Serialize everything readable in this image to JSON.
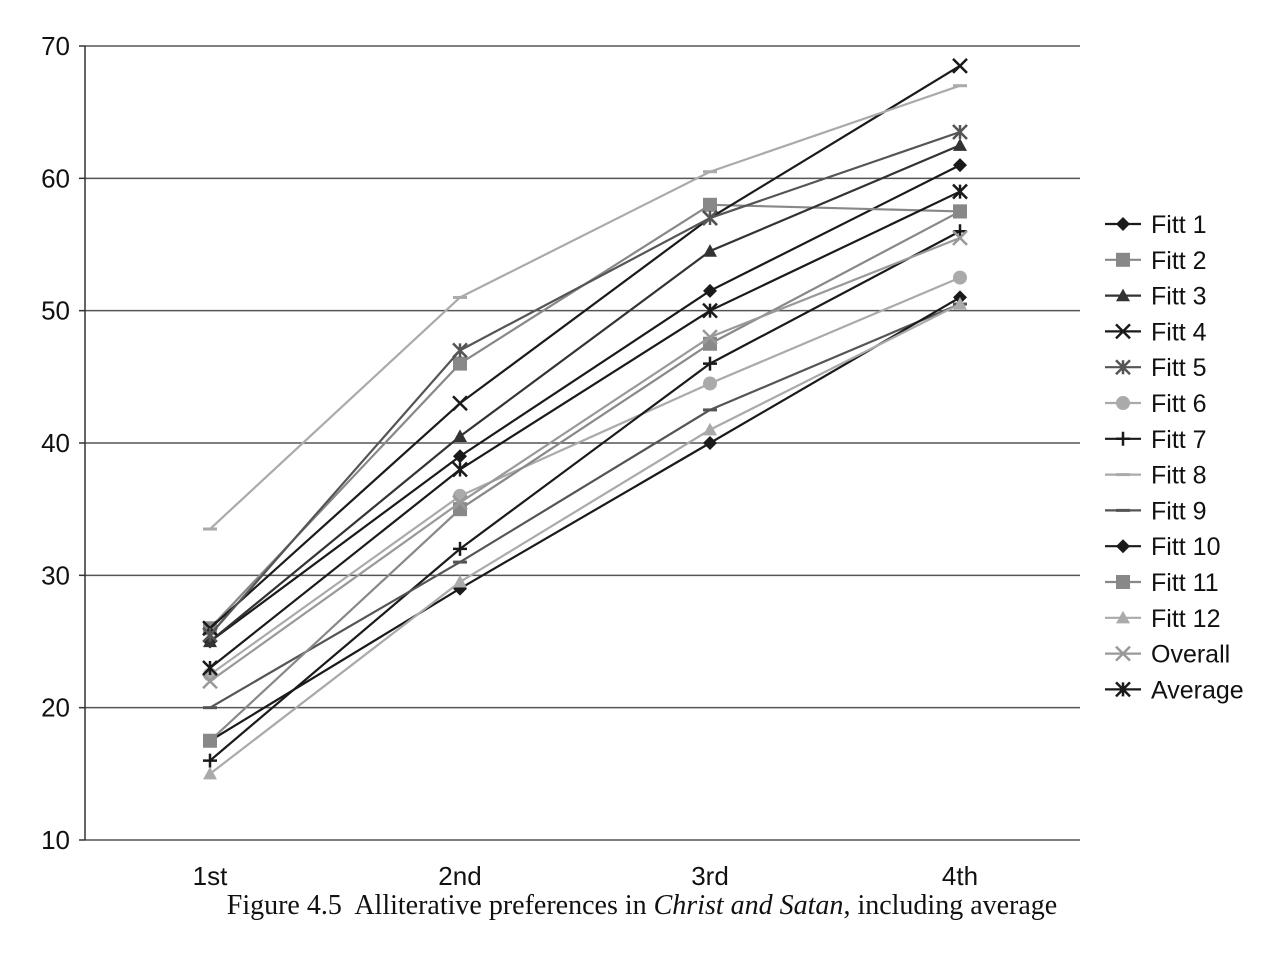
{
  "caption": {
    "label": "Figure 4.5",
    "text_before": "Alliterative preferences in ",
    "title_italic": "Christ and Satan",
    "text_after": ", including average"
  },
  "chart_data": {
    "type": "line",
    "categories": [
      "1st",
      "2nd",
      "3rd",
      "4th"
    ],
    "ylim": [
      10,
      70
    ],
    "yticks": [
      10,
      20,
      30,
      40,
      50,
      60,
      70
    ],
    "grid": true,
    "legend": "right",
    "series": [
      {
        "name": "Fitt 1",
        "values": [
          25.0,
          39.0,
          51.5,
          61.0
        ],
        "color": "#1a1a1a",
        "marker": "diamond"
      },
      {
        "name": "Fitt 2",
        "values": [
          26.0,
          46.0,
          58.0,
          57.5
        ],
        "color": "#888888",
        "marker": "square"
      },
      {
        "name": "Fitt 3",
        "values": [
          25.0,
          40.5,
          54.5,
          62.5
        ],
        "color": "#333333",
        "marker": "triangle"
      },
      {
        "name": "Fitt 4",
        "values": [
          26.0,
          43.0,
          57.0,
          68.5
        ],
        "color": "#1a1a1a",
        "marker": "x"
      },
      {
        "name": "Fitt 5",
        "values": [
          25.5,
          47.0,
          57.0,
          63.5
        ],
        "color": "#555555",
        "marker": "star"
      },
      {
        "name": "Fitt 6",
        "values": [
          22.5,
          36.0,
          44.5,
          52.5
        ],
        "color": "#aaaaaa",
        "marker": "circle"
      },
      {
        "name": "Fitt 7",
        "values": [
          16.0,
          32.0,
          46.0,
          56.0
        ],
        "color": "#1a1a1a",
        "marker": "plus"
      },
      {
        "name": "Fitt 8",
        "values": [
          33.5,
          51.0,
          60.5,
          67.0
        ],
        "color": "#aaaaaa",
        "marker": "dash"
      },
      {
        "name": "Fitt 9",
        "values": [
          20.0,
          31.0,
          42.5,
          50.5
        ],
        "color": "#555555",
        "marker": "dash"
      },
      {
        "name": "Fitt 10",
        "values": [
          17.5,
          29.0,
          40.0,
          51.0
        ],
        "color": "#1a1a1a",
        "marker": "diamond"
      },
      {
        "name": "Fitt 11",
        "values": [
          17.5,
          35.0,
          47.5,
          57.5
        ],
        "color": "#888888",
        "marker": "square"
      },
      {
        "name": "Fitt 12",
        "values": [
          15.0,
          29.5,
          41.0,
          50.5
        ],
        "color": "#aaaaaa",
        "marker": "triangle"
      },
      {
        "name": "Overall",
        "values": [
          22.0,
          35.5,
          48.0,
          55.5
        ],
        "color": "#999999",
        "marker": "x"
      },
      {
        "name": "Average",
        "values": [
          23.0,
          38.0,
          50.0,
          59.0
        ],
        "color": "#1a1a1a",
        "marker": "star"
      }
    ]
  }
}
